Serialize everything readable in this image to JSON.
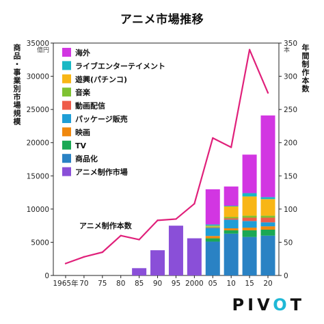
{
  "chart_data": {
    "type": "bar+line",
    "title": "アニメ市場推移",
    "left_axis_label": "商品・事業別市場規模",
    "left_axis_unit": "億円",
    "right_axis_label": "年間制作本数",
    "right_axis_unit": "本",
    "ylim_left": [
      0,
      35000
    ],
    "ylim_right": [
      0,
      350
    ],
    "yticks_left": [
      "0",
      "5000",
      "10000",
      "15000",
      "20000",
      "25000",
      "30000",
      "35000"
    ],
    "yticks_right": [
      "0",
      "50",
      "100",
      "150",
      "200",
      "250",
      "300",
      "350"
    ],
    "x_tick_labels": [
      "1965年",
      "70",
      "75",
      "80",
      "85",
      "90",
      "95",
      "2000",
      "05",
      "10",
      "15",
      "20"
    ],
    "x": [
      1965,
      1970,
      1975,
      1980,
      1985,
      1990,
      1995,
      2000,
      2005,
      2010,
      2015,
      2020
    ],
    "bar_colors": {
      "アニメ制作市場": "#8a4fd8",
      "商品化": "#2a82c4",
      "TV": "#1aa854",
      "映画": "#f0880e",
      "パッケージ販売": "#1f9ed6",
      "動画配信": "#ee5c4a",
      "音楽": "#7fc232",
      "遊興(パチンコ)": "#f8b616",
      "ライブエンターテイメント": "#19b8c4",
      "海外": "#d236e2"
    },
    "legend": [
      "海外",
      "ライブエンターテイメント",
      "遊興(パチンコ)",
      "音楽",
      "動画配信",
      "パッケージ販売",
      "映画",
      "TV",
      "商品化",
      "アニメ制作市場"
    ],
    "production_market": [
      {
        "x": 1985,
        "value": 1100
      },
      {
        "x": 1990,
        "value": 3800
      },
      {
        "x": 1995,
        "value": 7500
      },
      {
        "x": 2000,
        "value": 5600
      }
    ],
    "stacked": [
      {
        "x": 2005,
        "segments": [
          {
            "name": "商品化",
            "value": 5100
          },
          {
            "name": "TV",
            "value": 500
          },
          {
            "name": "映画",
            "value": 350
          },
          {
            "name": "パッケージ販売",
            "value": 1200
          },
          {
            "name": "動画配信",
            "value": 80
          },
          {
            "name": "音楽",
            "value": 150
          },
          {
            "name": "遊興(パチンコ)",
            "value": 100
          },
          {
            "name": "ライブエンターテイメント",
            "value": 200
          },
          {
            "name": "海外",
            "value": 5300
          }
        ]
      },
      {
        "x": 2010,
        "segments": [
          {
            "name": "商品化",
            "value": 6300
          },
          {
            "name": "TV",
            "value": 500
          },
          {
            "name": "映画",
            "value": 300
          },
          {
            "name": "パッケージ販売",
            "value": 1300
          },
          {
            "name": "動画配信",
            "value": 200
          },
          {
            "name": "音楽",
            "value": 200
          },
          {
            "name": "遊興(パチンコ)",
            "value": 1600
          },
          {
            "name": "ライブエンターテイメント",
            "value": 100
          },
          {
            "name": "海外",
            "value": 2900
          }
        ]
      },
      {
        "x": 2015,
        "segments": [
          {
            "name": "商品化",
            "value": 5800
          },
          {
            "name": "TV",
            "value": 1000
          },
          {
            "name": "映画",
            "value": 400
          },
          {
            "name": "パッケージ販売",
            "value": 1000
          },
          {
            "name": "動画配信",
            "value": 500
          },
          {
            "name": "音楽",
            "value": 300
          },
          {
            "name": "遊興(パチンコ)",
            "value": 2900
          },
          {
            "name": "ライブエンターテイメント",
            "value": 500
          },
          {
            "name": "海外",
            "value": 5800
          }
        ]
      },
      {
        "x": 2020,
        "segments": [
          {
            "name": "商品化",
            "value": 6000
          },
          {
            "name": "TV",
            "value": 900
          },
          {
            "name": "映画",
            "value": 500
          },
          {
            "name": "パッケージ販売",
            "value": 600
          },
          {
            "name": "動画配信",
            "value": 700
          },
          {
            "name": "音楽",
            "value": 300
          },
          {
            "name": "遊興(パチンコ)",
            "value": 2500
          },
          {
            "name": "ライブエンターテイメント",
            "value": 300
          },
          {
            "name": "海外",
            "value": 12300
          }
        ]
      }
    ],
    "line": {
      "name": "アニメ制作本数",
      "color": "#e0207a",
      "x": [
        1965,
        1970,
        1975,
        1980,
        1985,
        1990,
        1995,
        2000,
        2005,
        2010,
        2015,
        2020
      ],
      "y": [
        18,
        28,
        35,
        60,
        54,
        83,
        85,
        108,
        207,
        193,
        340,
        275
      ]
    },
    "annotation": "アニメ制作本数"
  },
  "brand": {
    "logo_text": "PIVOT",
    "logo_prefix": "PIV",
    "logo_o": "O",
    "logo_suffix": "T"
  }
}
